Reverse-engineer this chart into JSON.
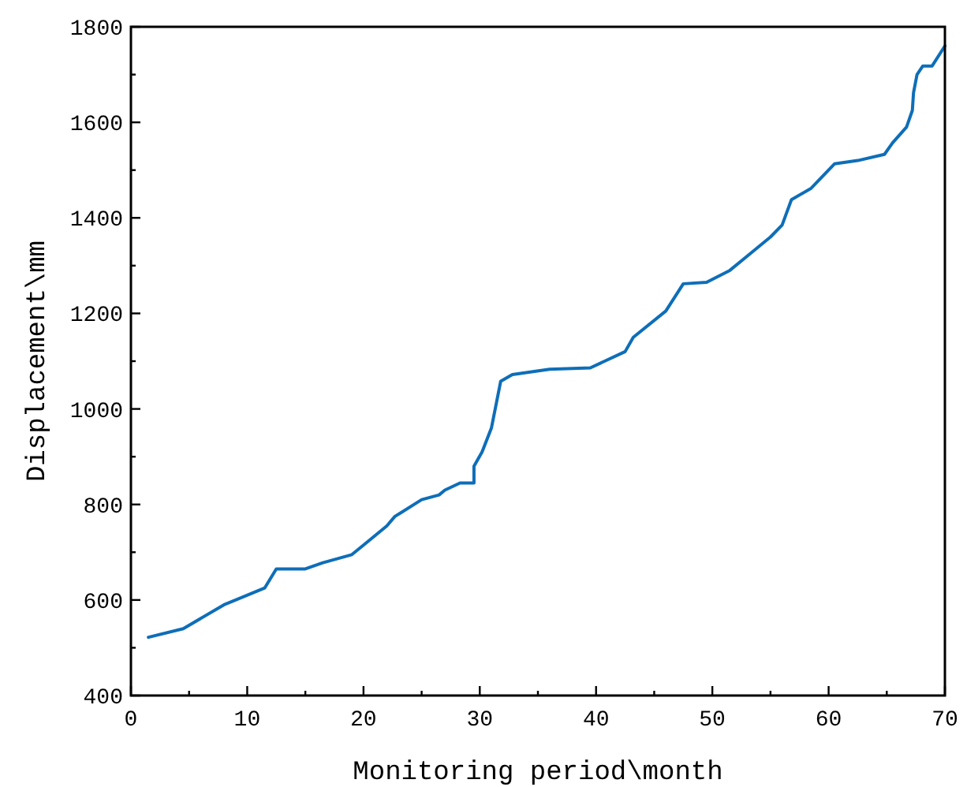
{
  "chart_data": {
    "type": "line",
    "xlabel": "Monitoring period\\month",
    "ylabel": "Displacement\\mm",
    "xlim": [
      0,
      70
    ],
    "ylim": [
      400,
      1800
    ],
    "xticks": [
      0,
      {
        "value": 5,
        "label": null
      },
      10,
      {
        "value": 15,
        "label": null
      },
      20,
      {
        "value": 25,
        "label": null
      },
      30,
      {
        "value": 35,
        "label": null
      },
      40,
      {
        "value": 45,
        "label": null
      },
      50,
      {
        "value": 55,
        "label": null
      },
      60,
      {
        "value": 65,
        "label": null
      },
      70
    ],
    "yticks": [
      400,
      {
        "value": 500,
        "label": null
      },
      600,
      {
        "value": 700,
        "label": null
      },
      800,
      {
        "value": 900,
        "label": null
      },
      1000,
      {
        "value": 1100,
        "label": null
      },
      1200,
      {
        "value": 1300,
        "label": null
      },
      1400,
      {
        "value": 1500,
        "label": null
      },
      1600,
      {
        "value": 1700,
        "label": null
      },
      1800
    ],
    "grid": false,
    "marker": "none",
    "line_style": "solid",
    "series": [
      {
        "color": "#0e6eb8",
        "x": [
          1.5,
          4.5,
          8,
          11.5,
          12.5,
          15,
          16.5,
          19,
          20,
          22,
          22.7,
          25,
          26.5,
          27,
          28.3,
          29.5,
          29.5,
          30.2,
          31,
          31.8,
          32.8,
          36,
          39.5,
          42.5,
          43.2,
          46,
          47.5,
          49.5,
          51.5,
          53,
          55,
          56,
          56.8,
          58.5,
          60.5,
          62.5,
          64.8,
          65.5,
          66.7,
          67.2,
          67.3,
          67.6,
          68.1,
          68.9,
          70
        ],
        "values": [
          522,
          540,
          590,
          625,
          665,
          665,
          678,
          695,
          715,
          755,
          775,
          810,
          820,
          830,
          845,
          845,
          880,
          910,
          960,
          1058,
          1072,
          1083,
          1086,
          1120,
          1150,
          1205,
          1262,
          1265,
          1290,
          1320,
          1360,
          1385,
          1438,
          1462,
          1513,
          1520,
          1533,
          1557,
          1590,
          1625,
          1662,
          1700,
          1718,
          1718,
          1760
        ]
      }
    ]
  }
}
